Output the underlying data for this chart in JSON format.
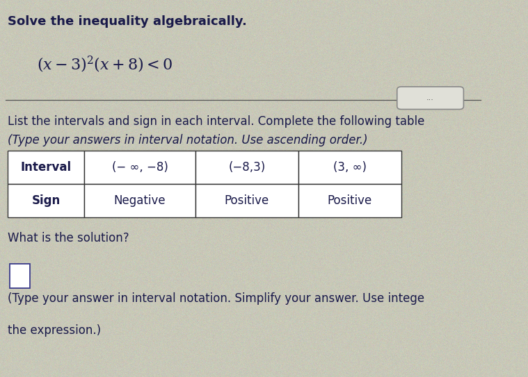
{
  "background_color": "#c8c8b8",
  "text_color": "#1a1a4a",
  "title_line1": "Solve the inequality algebraically.",
  "equation_main": "(x − 3)",
  "equation_super": "2",
  "equation_rest": "(x + 8) < 0",
  "instruction_line1": "List the intervals and sign in each interval. Complete the following table",
  "instruction_line2": "(Type your answers in interval notation. Use ascending order.)",
  "table_headers": [
    "Interval",
    "(− ∞, −8)",
    "(−8,3)",
    "(3, ∞)"
  ],
  "table_row2": [
    "Sign",
    "Negative",
    "Positive",
    "Positive"
  ],
  "solution_label": "What is the solution?",
  "bottom_line1": "(Type your answer in interval notation. Simplify your answer. Use intege",
  "bottom_line2": "the expression.)",
  "ellipsis_text": "...",
  "font_size_title": 13,
  "font_size_equation": 15,
  "font_size_body": 12,
  "font_size_table": 12,
  "font_size_table_header": 12
}
